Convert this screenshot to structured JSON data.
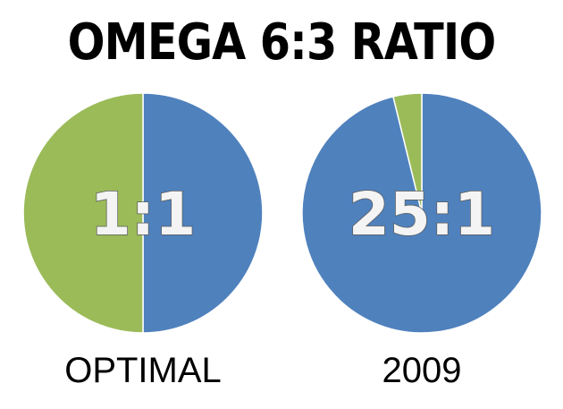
{
  "title": "OMEGA 6:3 RATIO",
  "chart_data": [
    {
      "type": "pie",
      "label": "OPTIMAL",
      "ratio_label": "1:1",
      "slices": [
        {
          "value": 1,
          "color": "#4f81bd"
        },
        {
          "value": 1,
          "color": "#9bbb59"
        }
      ]
    },
    {
      "type": "pie",
      "label": "2009",
      "ratio_label": "25:1",
      "slices": [
        {
          "value": 25,
          "color": "#4f81bd"
        },
        {
          "value": 1,
          "color": "#9bbb59"
        }
      ]
    }
  ]
}
